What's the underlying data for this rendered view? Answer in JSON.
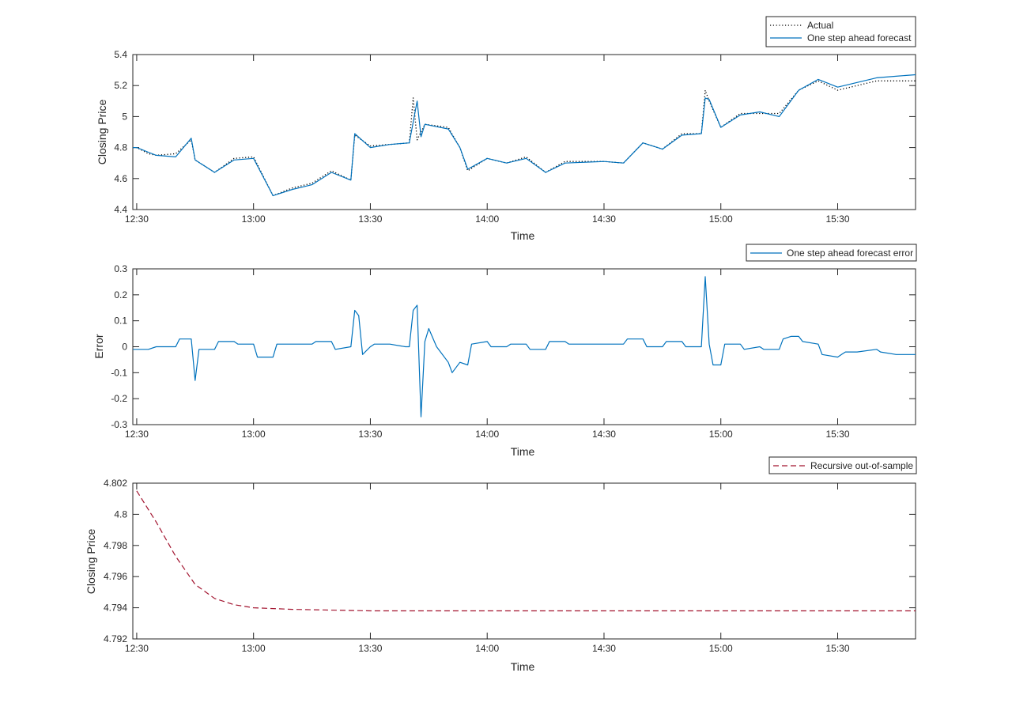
{
  "chart_data": [
    {
      "type": "line",
      "xlabel": "Time",
      "ylabel": "Closing Price",
      "xlim": [
        "12:29",
        "15:50"
      ],
      "ylim": [
        4.4,
        5.4
      ],
      "xticks": [
        "12:30",
        "13:00",
        "13:30",
        "14:00",
        "14:30",
        "15:00",
        "15:30"
      ],
      "yticks": [
        "4.4",
        "4.6",
        "4.8",
        "5",
        "5.2",
        "5.4"
      ],
      "grid": false,
      "legend": "top-right",
      "series": [
        {
          "name": "Actual",
          "style": "dotted",
          "color": "#000000",
          "points": [
            [
              "12:29",
              4.8
            ],
            [
              "12:30",
              4.8
            ],
            [
              "12:33",
              4.76
            ],
            [
              "12:35",
              4.75
            ],
            [
              "12:40",
              4.76
            ],
            [
              "12:44",
              4.85
            ],
            [
              "12:45",
              4.72
            ],
            [
              "12:50",
              4.64
            ],
            [
              "12:55",
              4.73
            ],
            [
              "13:00",
              4.74
            ],
            [
              "13:05",
              4.49
            ],
            [
              "13:10",
              4.54
            ],
            [
              "13:15",
              4.57
            ],
            [
              "13:20",
              4.65
            ],
            [
              "13:25",
              4.59
            ],
            [
              "13:26",
              4.88
            ],
            [
              "13:30",
              4.81
            ],
            [
              "13:35",
              4.82
            ],
            [
              "13:40",
              4.83
            ],
            [
              "13:41",
              5.12
            ],
            [
              "13:42",
              4.85
            ],
            [
              "13:44",
              4.95
            ],
            [
              "13:50",
              4.93
            ],
            [
              "13:53",
              4.8
            ],
            [
              "13:55",
              4.65
            ],
            [
              "14:00",
              4.73
            ],
            [
              "14:05",
              4.7
            ],
            [
              "14:10",
              4.74
            ],
            [
              "14:15",
              4.64
            ],
            [
              "14:20",
              4.71
            ],
            [
              "14:30",
              4.71
            ],
            [
              "14:35",
              4.7
            ],
            [
              "14:40",
              4.83
            ],
            [
              "14:45",
              4.79
            ],
            [
              "14:50",
              4.89
            ],
            [
              "14:55",
              4.89
            ],
            [
              "14:56",
              5.17
            ],
            [
              "14:57",
              5.1
            ],
            [
              "15:00",
              4.93
            ],
            [
              "15:05",
              5.02
            ],
            [
              "15:10",
              5.02
            ],
            [
              "15:15",
              5.02
            ],
            [
              "15:20",
              5.17
            ],
            [
              "15:25",
              5.23
            ],
            [
              "15:30",
              5.17
            ],
            [
              "15:35",
              5.2
            ],
            [
              "15:40",
              5.23
            ],
            [
              "15:45",
              5.23
            ],
            [
              "15:50",
              5.23
            ]
          ]
        },
        {
          "name": "One step ahead forecast",
          "style": "solid",
          "color": "#0072BD",
          "points": [
            [
              "12:29",
              4.8
            ],
            [
              "12:30",
              4.8
            ],
            [
              "12:33",
              4.77
            ],
            [
              "12:35",
              4.75
            ],
            [
              "12:40",
              4.74
            ],
            [
              "12:44",
              4.86
            ],
            [
              "12:45",
              4.72
            ],
            [
              "12:50",
              4.64
            ],
            [
              "12:55",
              4.72
            ],
            [
              "13:00",
              4.73
            ],
            [
              "13:05",
              4.49
            ],
            [
              "13:10",
              4.53
            ],
            [
              "13:15",
              4.56
            ],
            [
              "13:20",
              4.64
            ],
            [
              "13:25",
              4.59
            ],
            [
              "13:26",
              4.89
            ],
            [
              "13:30",
              4.8
            ],
            [
              "13:35",
              4.82
            ],
            [
              "13:40",
              4.83
            ],
            [
              "13:42",
              5.1
            ],
            [
              "13:43",
              4.87
            ],
            [
              "13:44",
              4.95
            ],
            [
              "13:50",
              4.92
            ],
            [
              "13:53",
              4.8
            ],
            [
              "13:55",
              4.66
            ],
            [
              "14:00",
              4.73
            ],
            [
              "14:05",
              4.7
            ],
            [
              "14:10",
              4.73
            ],
            [
              "14:15",
              4.64
            ],
            [
              "14:20",
              4.7
            ],
            [
              "14:30",
              4.71
            ],
            [
              "14:35",
              4.7
            ],
            [
              "14:40",
              4.83
            ],
            [
              "14:45",
              4.79
            ],
            [
              "14:50",
              4.88
            ],
            [
              "14:55",
              4.89
            ],
            [
              "14:56",
              5.12
            ],
            [
              "14:57",
              5.11
            ],
            [
              "15:00",
              4.93
            ],
            [
              "15:05",
              5.01
            ],
            [
              "15:10",
              5.03
            ],
            [
              "15:15",
              5.0
            ],
            [
              "15:20",
              5.17
            ],
            [
              "15:25",
              5.24
            ],
            [
              "15:30",
              5.19
            ],
            [
              "15:35",
              5.22
            ],
            [
              "15:40",
              5.25
            ],
            [
              "15:45",
              5.26
            ],
            [
              "15:50",
              5.27
            ]
          ]
        }
      ]
    },
    {
      "type": "line",
      "xlabel": "Time",
      "ylabel": "Error",
      "xlim": [
        "12:29",
        "15:50"
      ],
      "ylim": [
        -0.3,
        0.3
      ],
      "xticks": [
        "12:30",
        "13:00",
        "13:30",
        "14:00",
        "14:30",
        "15:00",
        "15:30"
      ],
      "yticks": [
        "-0.3",
        "-0.2",
        "-0.1",
        "0",
        "0.1",
        "0.2",
        "0.3"
      ],
      "grid": false,
      "legend": "top-right",
      "series": [
        {
          "name": "One step ahead forecast error",
          "style": "solid",
          "color": "#0072BD",
          "points": [
            [
              "12:29",
              -0.01
            ],
            [
              "12:33",
              -0.01
            ],
            [
              "12:35",
              0.0
            ],
            [
              "12:40",
              0.0
            ],
            [
              "12:41",
              0.03
            ],
            [
              "12:44",
              0.03
            ],
            [
              "12:45",
              -0.13
            ],
            [
              "12:46",
              -0.01
            ],
            [
              "12:50",
              -0.01
            ],
            [
              "12:51",
              0.02
            ],
            [
              "12:55",
              0.02
            ],
            [
              "12:56",
              0.01
            ],
            [
              "13:00",
              0.01
            ],
            [
              "13:01",
              -0.04
            ],
            [
              "13:05",
              -0.04
            ],
            [
              "13:06",
              0.01
            ],
            [
              "13:10",
              0.01
            ],
            [
              "13:15",
              0.01
            ],
            [
              "13:16",
              0.02
            ],
            [
              "13:20",
              0.02
            ],
            [
              "13:21",
              -0.01
            ],
            [
              "13:25",
              0.0
            ],
            [
              "13:26",
              0.14
            ],
            [
              "13:27",
              0.12
            ],
            [
              "13:28",
              -0.03
            ],
            [
              "13:30",
              0.0
            ],
            [
              "13:31",
              0.01
            ],
            [
              "13:35",
              0.01
            ],
            [
              "13:39",
              0.0
            ],
            [
              "13:40",
              0.0
            ],
            [
              "13:41",
              0.14
            ],
            [
              "13:42",
              0.16
            ],
            [
              "13:43",
              -0.27
            ],
            [
              "13:44",
              0.02
            ],
            [
              "13:45",
              0.07
            ],
            [
              "13:47",
              0.0
            ],
            [
              "13:50",
              -0.06
            ],
            [
              "13:51",
              -0.1
            ],
            [
              "13:53",
              -0.06
            ],
            [
              "13:55",
              -0.07
            ],
            [
              "13:56",
              0.01
            ],
            [
              "14:00",
              0.02
            ],
            [
              "14:01",
              0.0
            ],
            [
              "14:05",
              0.0
            ],
            [
              "14:06",
              0.01
            ],
            [
              "14:10",
              0.01
            ],
            [
              "14:11",
              -0.01
            ],
            [
              "14:15",
              -0.01
            ],
            [
              "14:16",
              0.02
            ],
            [
              "14:20",
              0.02
            ],
            [
              "14:21",
              0.01
            ],
            [
              "14:25",
              0.01
            ],
            [
              "14:30",
              0.01
            ],
            [
              "14:35",
              0.01
            ],
            [
              "14:36",
              0.03
            ],
            [
              "14:40",
              0.03
            ],
            [
              "14:41",
              0.0
            ],
            [
              "14:45",
              0.0
            ],
            [
              "14:46",
              0.02
            ],
            [
              "14:50",
              0.02
            ],
            [
              "14:51",
              0.0
            ],
            [
              "14:55",
              0.0
            ],
            [
              "14:56",
              0.27
            ],
            [
              "14:57",
              0.01
            ],
            [
              "14:58",
              -0.07
            ],
            [
              "15:00",
              -0.07
            ],
            [
              "15:01",
              0.01
            ],
            [
              "15:05",
              0.01
            ],
            [
              "15:06",
              -0.01
            ],
            [
              "15:10",
              0.0
            ],
            [
              "15:11",
              -0.01
            ],
            [
              "15:15",
              -0.01
            ],
            [
              "15:16",
              0.03
            ],
            [
              "15:18",
              0.04
            ],
            [
              "15:20",
              0.04
            ],
            [
              "15:21",
              0.02
            ],
            [
              "15:25",
              0.01
            ],
            [
              "15:26",
              -0.03
            ],
            [
              "15:30",
              -0.04
            ],
            [
              "15:31",
              -0.03
            ],
            [
              "15:32",
              -0.02
            ],
            [
              "15:35",
              -0.02
            ],
            [
              "15:40",
              -0.01
            ],
            [
              "15:41",
              -0.02
            ],
            [
              "15:45",
              -0.03
            ],
            [
              "15:50",
              -0.03
            ]
          ]
        }
      ]
    },
    {
      "type": "line",
      "xlabel": "Time",
      "ylabel": "Closing Price",
      "xlim": [
        "12:29",
        "15:50"
      ],
      "ylim": [
        4.792,
        4.802
      ],
      "xticks": [
        "12:30",
        "13:00",
        "13:30",
        "14:00",
        "14:30",
        "15:00",
        "15:30"
      ],
      "yticks": [
        "4.792",
        "4.794",
        "4.796",
        "4.798",
        "4.8",
        "4.802"
      ],
      "grid": false,
      "legend": "top-right",
      "series": [
        {
          "name": "Recursive out-of-sample",
          "style": "dashed",
          "color": "#A2142F",
          "points": [
            [
              "12:30",
              4.8015
            ],
            [
              "12:35",
              4.7995
            ],
            [
              "12:40",
              4.7973
            ],
            [
              "12:45",
              4.7955
            ],
            [
              "12:50",
              4.7946
            ],
            [
              "12:55",
              4.7942
            ],
            [
              "13:00",
              4.794
            ],
            [
              "13:10",
              4.7939
            ],
            [
              "13:30",
              4.7938
            ],
            [
              "14:00",
              4.7938
            ],
            [
              "15:00",
              4.7938
            ],
            [
              "15:50",
              4.7938
            ]
          ]
        }
      ]
    }
  ]
}
